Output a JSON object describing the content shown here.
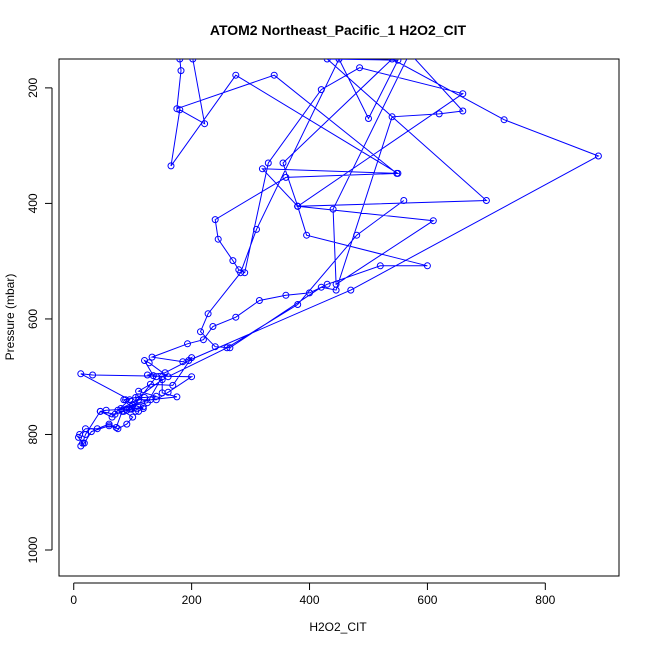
{
  "chart_data": {
    "type": "line",
    "title": "ATOM2 Northeast_Pacific_1 H2O2_CIT",
    "xlabel": "H2O2_CIT",
    "ylabel": "Pressure (mbar)",
    "xlim": [
      -25,
      925
    ],
    "ylim": [
      1045,
      150
    ],
    "y_inverted": true,
    "x_ticks": [
      0,
      200,
      400,
      600,
      800
    ],
    "y_ticks": [
      200,
      400,
      600,
      800,
      1000
    ],
    "grid": false,
    "legend": "none",
    "series_color": "#0000ff",
    "marker": "open-circle",
    "series": [
      {
        "points": [
          [
            12,
            820
          ],
          [
            18,
            815
          ],
          [
            30,
            795
          ],
          [
            60,
            785
          ],
          [
            75,
            790
          ],
          [
            90,
            782
          ],
          [
            100,
            770
          ],
          [
            85,
            760
          ],
          [
            70,
            765
          ],
          [
            45,
            760
          ],
          [
            55,
            758
          ],
          [
            95,
            756
          ],
          [
            118,
            755
          ],
          [
            100,
            748
          ],
          [
            88,
            740
          ],
          [
            105,
            736
          ],
          [
            120,
            736
          ],
          [
            140,
            734
          ],
          [
            110,
            725
          ],
          [
            130,
            713
          ],
          [
            168,
            715
          ],
          [
            200,
            667
          ],
          [
            185,
            674
          ],
          [
            133,
            666
          ],
          [
            193,
            643
          ],
          [
            220,
            636
          ],
          [
            236,
            613
          ],
          [
            275,
            597
          ],
          [
            315,
            568
          ],
          [
            360,
            559
          ],
          [
            400,
            555
          ],
          [
            430,
            540
          ],
          [
            520,
            508
          ],
          [
            600,
            508
          ],
          [
            395,
            455
          ],
          [
            380,
            405
          ],
          [
            320,
            340
          ],
          [
            550,
            348
          ],
          [
            275,
            178
          ],
          [
            165,
            335
          ],
          [
            180,
            238
          ],
          [
            222,
            262
          ],
          [
            202,
            150
          ],
          [
            200,
            104
          ],
          [
            180,
            150
          ],
          [
            182,
            170
          ],
          [
            175,
            236
          ],
          [
            340,
            178
          ],
          [
            548,
            348
          ],
          [
            360,
            355
          ],
          [
            240,
            428
          ],
          [
            245,
            462
          ],
          [
            270,
            499
          ],
          [
            280,
            515
          ],
          [
            290,
            520
          ],
          [
            330,
            330
          ],
          [
            420,
            203
          ],
          [
            485,
            165
          ],
          [
            660,
            210
          ],
          [
            380,
            405
          ],
          [
            700,
            395
          ],
          [
            430,
            150
          ],
          [
            550,
            152
          ],
          [
            500,
            253
          ],
          [
            450,
            150
          ],
          [
            310,
            445
          ],
          [
            283,
            520
          ],
          [
            228,
            591
          ],
          [
            215,
            622
          ],
          [
            240,
            648
          ],
          [
            265,
            650
          ],
          [
            420,
            545
          ],
          [
            445,
            550
          ],
          [
            540,
            250
          ],
          [
            620,
            245
          ],
          [
            660,
            240
          ],
          [
            570,
            140
          ],
          [
            440,
            410
          ],
          [
            445,
            540
          ],
          [
            610,
            430
          ],
          [
            380,
            405
          ],
          [
            355,
            330
          ],
          [
            540,
            150
          ],
          [
            730,
            255
          ],
          [
            890,
            318
          ],
          [
            470,
            550
          ],
          [
            195,
            672
          ],
          [
            155,
            693
          ],
          [
            125,
            697
          ],
          [
            140,
            700
          ],
          [
            98,
            756
          ],
          [
            105,
            760
          ],
          [
            85,
            740
          ],
          [
            110,
            735
          ],
          [
            150,
            705
          ],
          [
            150,
            728
          ],
          [
            175,
            735
          ],
          [
            130,
            740
          ],
          [
            80,
            755
          ],
          [
            110,
            740
          ],
          [
            140,
            740
          ],
          [
            160,
            727
          ],
          [
            200,
            700
          ],
          [
            32,
            697
          ],
          [
            12,
            695
          ],
          [
            95,
            740
          ],
          [
            75,
            758
          ],
          [
            65,
            770
          ],
          [
            45,
            760
          ],
          [
            20,
            800
          ],
          [
            15,
            815
          ],
          [
            8,
            805
          ],
          [
            10,
            800
          ],
          [
            20,
            790
          ],
          [
            40,
            790
          ],
          [
            60,
            782
          ],
          [
            72,
            788
          ],
          [
            82,
            760
          ],
          [
            118,
            752
          ],
          [
            110,
            760
          ],
          [
            90,
            758
          ],
          [
            100,
            750
          ],
          [
            125,
            745
          ],
          [
            150,
            700
          ],
          [
            135,
            698
          ],
          [
            120,
            672
          ],
          [
            128,
            676
          ],
          [
            160,
            700
          ],
          [
            260,
            650
          ],
          [
            380,
            575
          ],
          [
            480,
            455
          ],
          [
            560,
            395
          ]
        ]
      }
    ]
  }
}
